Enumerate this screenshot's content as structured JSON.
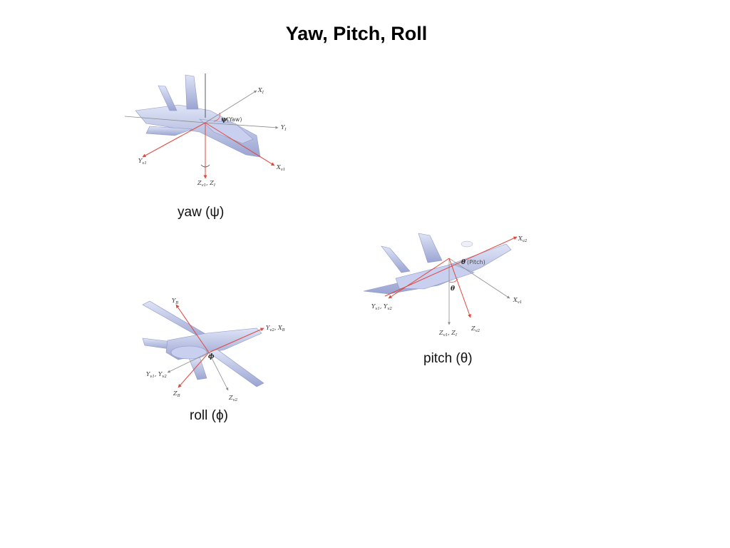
{
  "slide": {
    "title": "Yaw, Pitch, Roll"
  },
  "yaw": {
    "caption": "yaw (ψ)",
    "symbol": "ψ",
    "annotation": "(Yaw)",
    "labels": {
      "x_inertial": "X",
      "x_inertial_sub": "I",
      "y_inertial": "Y",
      "y_inertial_sub": "I",
      "y_vehicle": "Y",
      "y_vehicle_sub": "v1",
      "x_vehicle": "X",
      "x_vehicle_sub": "v1",
      "z_axis": "Z",
      "z_axis_sub": "v1",
      "z_axis2": ", Z",
      "z_axis2_sub": "I"
    }
  },
  "pitch": {
    "caption": "pitch (θ)",
    "symbol": "θ",
    "annotation": "(Pitch)",
    "labels": {
      "x_v2": "X",
      "x_v2_sub": "v2",
      "x_v1": "X",
      "x_v1_sub": "v1",
      "y_v1": "Y",
      "y_v1_sub": "v1",
      "y_v2": ", Y",
      "y_v2_sub": "v2",
      "z_v1": "Z",
      "z_v1_sub": "v1",
      "z_i": ", Z",
      "z_i_sub": "I",
      "z_v2": "Z",
      "z_v2_sub": "v2"
    }
  },
  "roll": {
    "caption": "roll (ϕ)",
    "symbol": "ϕ",
    "labels": {
      "y_b": "Y",
      "y_b_sub": "B",
      "y_v2": "Y",
      "y_v2_sub": "v2",
      "x_b": ", X",
      "x_b_sub": "B",
      "y_v1": "Y",
      "y_v1_sub": "v1",
      "y_v2b": ", Y",
      "y_v2b_sub": "v2",
      "z_b": "Z",
      "z_b_sub": "B",
      "z_v2": "Z",
      "z_v2_sub": "v2"
    }
  },
  "colors": {
    "axis_red": "#e0483c",
    "axis_gray": "#8a8a8a",
    "airframe": "#b9c2e6",
    "airframe_dark": "#8e98c6"
  }
}
